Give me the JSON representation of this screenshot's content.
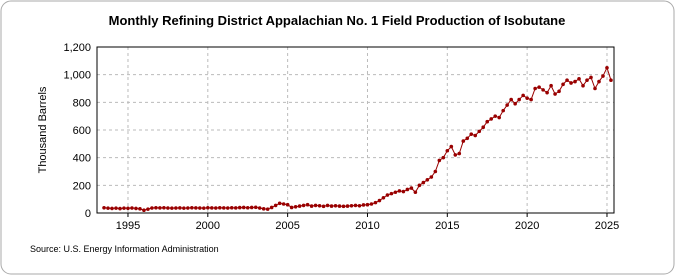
{
  "chart_data": {
    "type": "line",
    "title": "Monthly Refining District Appalachian No. 1 Field Production of Isobutane",
    "y_label": "Thousand Barrels",
    "source": "Source: U.S. Energy Information Administration",
    "xlim": [
      1993.06,
      2025.44
    ],
    "xticks": [
      1995,
      2000,
      2005,
      2010,
      2015,
      2020,
      2025
    ],
    "ylim": [
      0,
      1200
    ],
    "yticks": [
      0,
      200,
      400,
      600,
      800,
      {
        "value": 1000,
        "label": "1,000"
      },
      {
        "value": 1200,
        "label": "1,200"
      }
    ],
    "grid": true,
    "series": [
      {
        "name": "Isobutane",
        "color": "#990000",
        "x": [
          1993.5,
          1993.75,
          1994,
          1994.25,
          1994.5,
          1994.75,
          1995,
          1995.25,
          1995.5,
          1995.75,
          1996,
          1996.25,
          1996.5,
          1996.75,
          1997,
          1997.25,
          1997.5,
          1997.75,
          1998,
          1998.25,
          1998.5,
          1998.75,
          1999,
          1999.25,
          1999.5,
          1999.75,
          2000,
          2000.25,
          2000.5,
          2000.75,
          2001,
          2001.25,
          2001.5,
          2001.75,
          2002,
          2002.25,
          2002.5,
          2002.75,
          2003,
          2003.25,
          2003.5,
          2003.75,
          2004,
          2004.25,
          2004.5,
          2004.75,
          2005,
          2005.25,
          2005.5,
          2005.75,
          2006,
          2006.25,
          2006.5,
          2006.75,
          2007,
          2007.25,
          2007.5,
          2007.75,
          2008,
          2008.25,
          2008.5,
          2008.75,
          2009,
          2009.25,
          2009.5,
          2009.75,
          2010,
          2010.25,
          2010.5,
          2010.75,
          2011,
          2011.25,
          2011.5,
          2011.75,
          2012,
          2012.25,
          2012.5,
          2012.75,
          2013,
          2013.25,
          2013.5,
          2013.75,
          2014,
          2014.25,
          2014.5,
          2014.75,
          2015,
          2015.25,
          2015.5,
          2015.75,
          2016,
          2016.25,
          2016.5,
          2016.75,
          2017,
          2017.25,
          2017.5,
          2017.75,
          2018,
          2018.25,
          2018.5,
          2018.75,
          2019,
          2019.25,
          2019.5,
          2019.75,
          2020,
          2020.25,
          2020.5,
          2020.75,
          2021,
          2021.25,
          2021.5,
          2021.75,
          2022,
          2022.25,
          2022.5,
          2022.75,
          2023,
          2023.25,
          2023.5,
          2023.75,
          2024,
          2024.25,
          2024.5,
          2024.75,
          2025,
          2025.25
        ],
        "values": [
          38,
          35,
          33,
          35,
          32,
          35,
          34,
          36,
          33,
          30,
          20,
          28,
          36,
          38,
          37,
          38,
          36,
          35,
          36,
          37,
          35,
          36,
          38,
          37,
          36,
          35,
          38,
          37,
          36,
          38,
          37,
          36,
          38,
          37,
          39,
          40,
          38,
          40,
          41,
          36,
          30,
          28,
          40,
          55,
          70,
          65,
          60,
          40,
          45,
          50,
          55,
          60,
          50,
          55,
          52,
          48,
          55,
          50,
          52,
          50,
          48,
          50,
          52,
          55,
          52,
          58,
          60,
          65,
          75,
          90,
          110,
          130,
          140,
          150,
          160,
          155,
          170,
          180,
          150,
          200,
          220,
          240,
          260,
          300,
          380,
          400,
          450,
          480,
          420,
          430,
          520,
          540,
          570,
          560,
          590,
          620,
          660,
          680,
          700,
          690,
          740,
          780,
          820,
          790,
          820,
          850,
          830,
          820,
          900,
          910,
          890,
          870,
          920,
          860,
          880,
          930,
          960,
          940,
          950,
          970,
          920,
          960,
          980,
          900,
          950,
          990,
          1050,
          960
        ]
      }
    ]
  }
}
